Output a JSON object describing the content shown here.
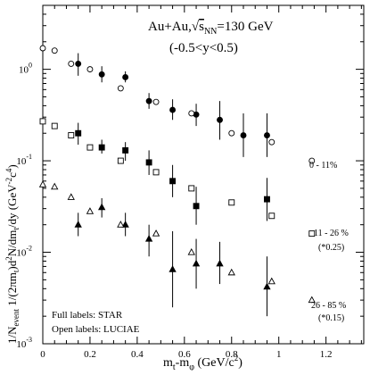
{
  "chart_data": {
    "type": "scatter",
    "title": "Au+Au,√s_NN=130 GeV",
    "title_parts": {
      "prefix": "Au+Au,",
      "sqrt": "√",
      "s": "s",
      "sub": "NN",
      "suffix": "=130 GeV"
    },
    "subtitle": "(-0.5<y<0.5)",
    "xlabel": "m_t-m_φ (GeV/c²)",
    "ylabel": "1/N_event 1/(2πm_t)d²N/dm_t/dy (GeV⁻²c⁴)",
    "xlabel_text": "m",
    "xlabel_sub_t": "t",
    "xlabel_mid": "-m",
    "xlabel_sub_phi": "φ",
    "xlabel_units": " (GeV/c",
    "xlabel_sup": "2",
    "xlabel_close": ")",
    "ylabel_text": "1/N",
    "ylabel_sub_event": "event",
    "ylabel_mid": " 1/(2πm",
    "ylabel_sub_t1": "t",
    "ylabel_mid2": ")d",
    "ylabel_sup2": "2",
    "ylabel_mid3": "N/dm",
    "ylabel_sub_t2": "t",
    "ylabel_end": "/dy (GeV",
    "ylabel_sup_units": "-2",
    "ylabel_c": "c",
    "ylabel_sup_units2": "4",
    "ylabel_close": ")",
    "xlim": [
      0,
      1.36
    ],
    "ylim": [
      0.001,
      5
    ],
    "yscale": "log",
    "x_ticks": [
      "0",
      "0.2",
      "0.4",
      "0.6",
      "0.8",
      "1",
      "1.2"
    ],
    "x_tick_values": [
      0,
      0.2,
      0.4,
      0.6,
      0.8,
      1.0,
      1.2
    ],
    "y_ticks": [
      "10",
      "10",
      "10",
      "10"
    ],
    "y_tick_exponents": [
      "-3",
      "-2",
      "-1",
      "0"
    ],
    "y_tick_values": [
      0.001,
      0.01,
      0.1,
      1
    ],
    "grid": false,
    "annotations": {
      "legend_full": "Full labels: STAR",
      "legend_open": "Open labels: LUCIAE",
      "label_0_11": "0 - 11%",
      "label_11_26": "11 - 26 %",
      "label_11_26_scale": "(*0.25)",
      "label_26_85": "26 - 85 %",
      "label_26_85_scale": "(*0.15)"
    },
    "series": [
      {
        "name": "0 - 11%",
        "source": "STAR",
        "marker": "filled-circle",
        "points": [
          {
            "x": 0.15,
            "y": 1.15,
            "lo": 0.85,
            "hi": 1.5
          },
          {
            "x": 0.25,
            "y": 0.88,
            "lo": 0.72,
            "hi": 1.08
          },
          {
            "x": 0.35,
            "y": 0.82,
            "lo": 0.72,
            "hi": 0.95
          },
          {
            "x": 0.45,
            "y": 0.45,
            "lo": 0.37,
            "hi": 0.55
          },
          {
            "x": 0.55,
            "y": 0.36,
            "lo": 0.28,
            "hi": 0.47
          },
          {
            "x": 0.65,
            "y": 0.32,
            "lo": 0.24,
            "hi": 0.42
          },
          {
            "x": 0.75,
            "y": 0.28,
            "lo": 0.17,
            "hi": 0.45
          },
          {
            "x": 0.85,
            "y": 0.19,
            "lo": 0.11,
            "hi": 0.33
          },
          {
            "x": 0.95,
            "y": 0.19,
            "lo": 0.11,
            "hi": 0.33
          }
        ]
      },
      {
        "name": "0 - 11%",
        "source": "LUCIAE",
        "marker": "open-circle",
        "points": [
          {
            "x": 0.0,
            "y": 1.7
          },
          {
            "x": 0.05,
            "y": 1.6
          },
          {
            "x": 0.12,
            "y": 1.15
          },
          {
            "x": 0.2,
            "y": 1.0
          },
          {
            "x": 0.33,
            "y": 0.62
          },
          {
            "x": 0.48,
            "y": 0.44
          },
          {
            "x": 0.63,
            "y": 0.33
          },
          {
            "x": 0.8,
            "y": 0.2
          },
          {
            "x": 0.97,
            "y": 0.16
          },
          {
            "x": 1.14,
            "y": 0.1
          }
        ]
      },
      {
        "name": "11 - 26 %",
        "source": "STAR",
        "marker": "filled-square",
        "points": [
          {
            "x": 0.15,
            "y": 0.2,
            "lo": 0.15,
            "hi": 0.26
          },
          {
            "x": 0.25,
            "y": 0.14,
            "lo": 0.12,
            "hi": 0.17
          },
          {
            "x": 0.35,
            "y": 0.13,
            "lo": 0.1,
            "hi": 0.16
          },
          {
            "x": 0.45,
            "y": 0.096,
            "lo": 0.07,
            "hi": 0.13
          },
          {
            "x": 0.55,
            "y": 0.06,
            "lo": 0.04,
            "hi": 0.09
          },
          {
            "x": 0.65,
            "y": 0.032,
            "lo": 0.02,
            "hi": 0.052
          },
          {
            "x": 0.95,
            "y": 0.038,
            "lo": 0.022,
            "hi": 0.065
          }
        ]
      },
      {
        "name": "11 - 26 %",
        "source": "LUCIAE",
        "marker": "open-square",
        "points": [
          {
            "x": 0.0,
            "y": 0.27
          },
          {
            "x": 0.05,
            "y": 0.24
          },
          {
            "x": 0.12,
            "y": 0.19
          },
          {
            "x": 0.2,
            "y": 0.14
          },
          {
            "x": 0.33,
            "y": 0.1
          },
          {
            "x": 0.48,
            "y": 0.075
          },
          {
            "x": 0.63,
            "y": 0.05
          },
          {
            "x": 0.8,
            "y": 0.035
          },
          {
            "x": 0.97,
            "y": 0.025
          },
          {
            "x": 1.14,
            "y": 0.016
          }
        ]
      },
      {
        "name": "26 - 85 %",
        "source": "STAR",
        "marker": "filled-triangle",
        "points": [
          {
            "x": 0.15,
            "y": 0.02,
            "lo": 0.015,
            "hi": 0.027
          },
          {
            "x": 0.25,
            "y": 0.031,
            "lo": 0.024,
            "hi": 0.039
          },
          {
            "x": 0.35,
            "y": 0.02,
            "lo": 0.015,
            "hi": 0.027
          },
          {
            "x": 0.45,
            "y": 0.014,
            "lo": 0.009,
            "hi": 0.02
          },
          {
            "x": 0.55,
            "y": 0.0065,
            "lo": 0.0025,
            "hi": 0.017
          },
          {
            "x": 0.65,
            "y": 0.0075,
            "lo": 0.004,
            "hi": 0.014
          },
          {
            "x": 0.75,
            "y": 0.0075,
            "lo": 0.0045,
            "hi": 0.013
          },
          {
            "x": 0.95,
            "y": 0.0042,
            "lo": 0.002,
            "hi": 0.009
          }
        ]
      },
      {
        "name": "26 - 85 %",
        "source": "LUCIAE",
        "marker": "open-triangle",
        "points": [
          {
            "x": 0.0,
            "y": 0.055
          },
          {
            "x": 0.05,
            "y": 0.052
          },
          {
            "x": 0.12,
            "y": 0.04
          },
          {
            "x": 0.2,
            "y": 0.028
          },
          {
            "x": 0.33,
            "y": 0.02
          },
          {
            "x": 0.48,
            "y": 0.016
          },
          {
            "x": 0.63,
            "y": 0.01
          },
          {
            "x": 0.8,
            "y": 0.006
          },
          {
            "x": 0.97,
            "y": 0.0048
          },
          {
            "x": 1.14,
            "y": 0.003
          }
        ]
      }
    ]
  }
}
